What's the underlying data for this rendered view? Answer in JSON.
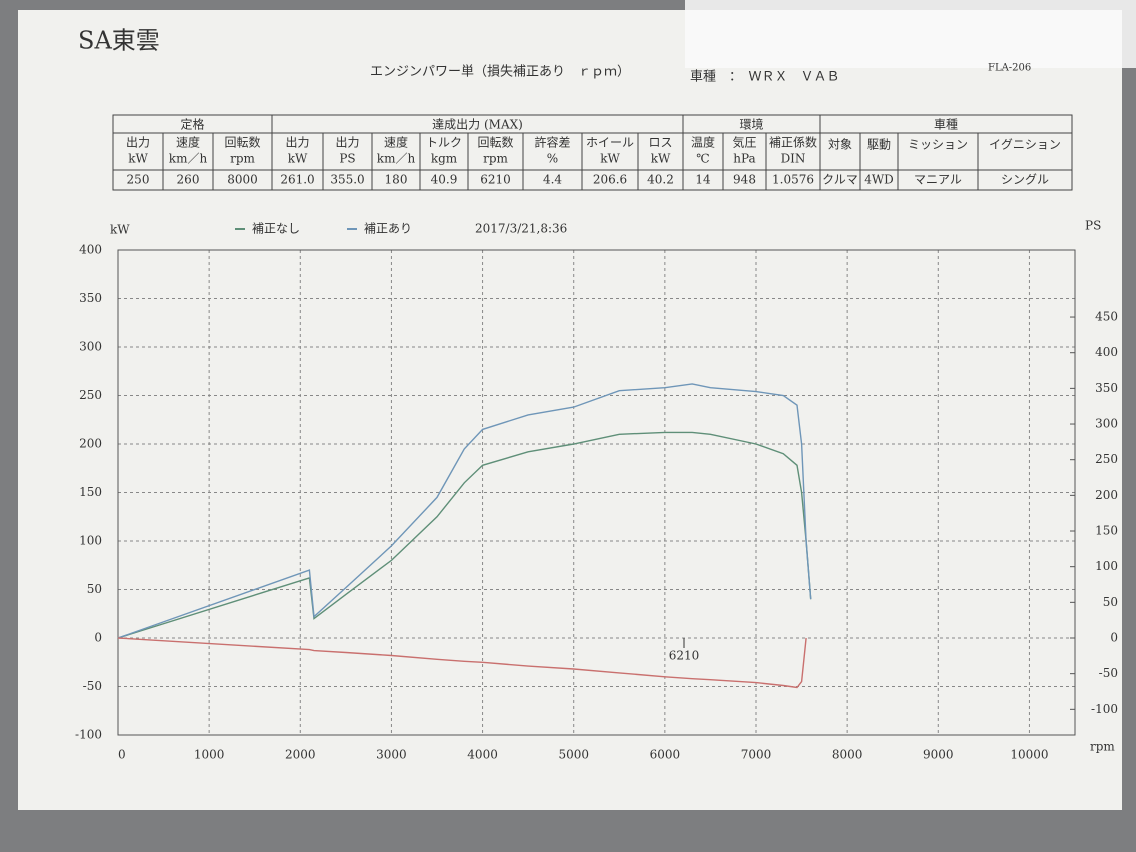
{
  "header": {
    "brand": "SA東雲",
    "title": "エンジンパワー単（損失補正あり　ｒｐｍ）",
    "vehicle": "車種　：　ＷＲＸ　ＶＡＢ",
    "form_id": "FLA-206"
  },
  "table": {
    "groups": [
      {
        "label": "定格",
        "span": 3
      },
      {
        "label": "達成出力 (MAX)",
        "span": 8
      },
      {
        "label": "環境",
        "span": 3
      },
      {
        "label": "車種",
        "span": 4
      }
    ],
    "headers": [
      [
        "出力",
        "kW"
      ],
      [
        "速度",
        "km／h"
      ],
      [
        "回転数",
        "rpm"
      ],
      [
        "出力",
        "kW"
      ],
      [
        "出力",
        "PS"
      ],
      [
        "速度",
        "km／h"
      ],
      [
        "トルク",
        "kgm"
      ],
      [
        "回転数",
        "rpm"
      ],
      [
        "許容差",
        "%"
      ],
      [
        "ホイール",
        "kW"
      ],
      [
        "ロス",
        "kW"
      ],
      [
        "温度",
        "℃"
      ],
      [
        "気圧",
        "hPa"
      ],
      [
        "補正係数",
        "DIN"
      ],
      [
        "対象"
      ],
      [
        "駆動"
      ],
      [
        "ミッション"
      ],
      [
        "イグニション"
      ]
    ],
    "rows": [
      [
        "250",
        "260",
        "8000",
        "261.0",
        "355.0",
        "180",
        "40.9",
        "6210",
        "4.4",
        "206.6",
        "40.2",
        "14",
        "948",
        "1.0576",
        "クルマ",
        "4WD",
        "マニアル",
        "シングル"
      ]
    ]
  },
  "chart_data": {
    "type": "line",
    "date": "2017/3/21,8:36",
    "y_label": "kW",
    "y2_label": "PS",
    "x_label": "rpm",
    "x": [
      0,
      2100,
      2150,
      2500,
      3000,
      3500,
      3800,
      4000,
      4500,
      5000,
      5500,
      6000,
      6300,
      6500,
      7000,
      7300,
      7450,
      7500,
      7550,
      7600
    ],
    "series": [
      {
        "name": "補正なし",
        "color": "#5f8f78",
        "values": [
          0,
          62,
          20,
          45,
          80,
          125,
          160,
          178,
          192,
          200,
          210,
          212,
          212,
          210,
          200,
          190,
          178,
          150,
          100,
          40
        ]
      },
      {
        "name": "補正あり",
        "color": "#6f96b8",
        "values": [
          0,
          70,
          22,
          52,
          95,
          145,
          195,
          215,
          230,
          238,
          255,
          258,
          262,
          258,
          254,
          250,
          240,
          200,
          100,
          40
        ]
      },
      {
        "color": "#c9706e",
        "values": [
          0,
          -12,
          -13,
          -15,
          -18,
          -22,
          -24,
          -25,
          -29,
          -32,
          -36,
          -40,
          -42,
          -43,
          -46,
          -49,
          -51,
          -45,
          0,
          null
        ]
      }
    ],
    "marker_x": 6210,
    "xlim": [
      0,
      10500
    ],
    "xticks": [
      0,
      1000,
      2000,
      3000,
      4000,
      5000,
      6000,
      7000,
      8000,
      9000,
      10000
    ],
    "ylim": [
      -100,
      400
    ],
    "yticks": [
      -100,
      -50,
      0,
      50,
      100,
      150,
      200,
      250,
      300,
      350,
      400
    ],
    "y2lim": [
      -136,
      544
    ],
    "y2ticks": [
      -100,
      -50,
      0,
      50,
      100,
      150,
      200,
      250,
      300,
      350,
      400,
      450
    ],
    "grid": true
  }
}
